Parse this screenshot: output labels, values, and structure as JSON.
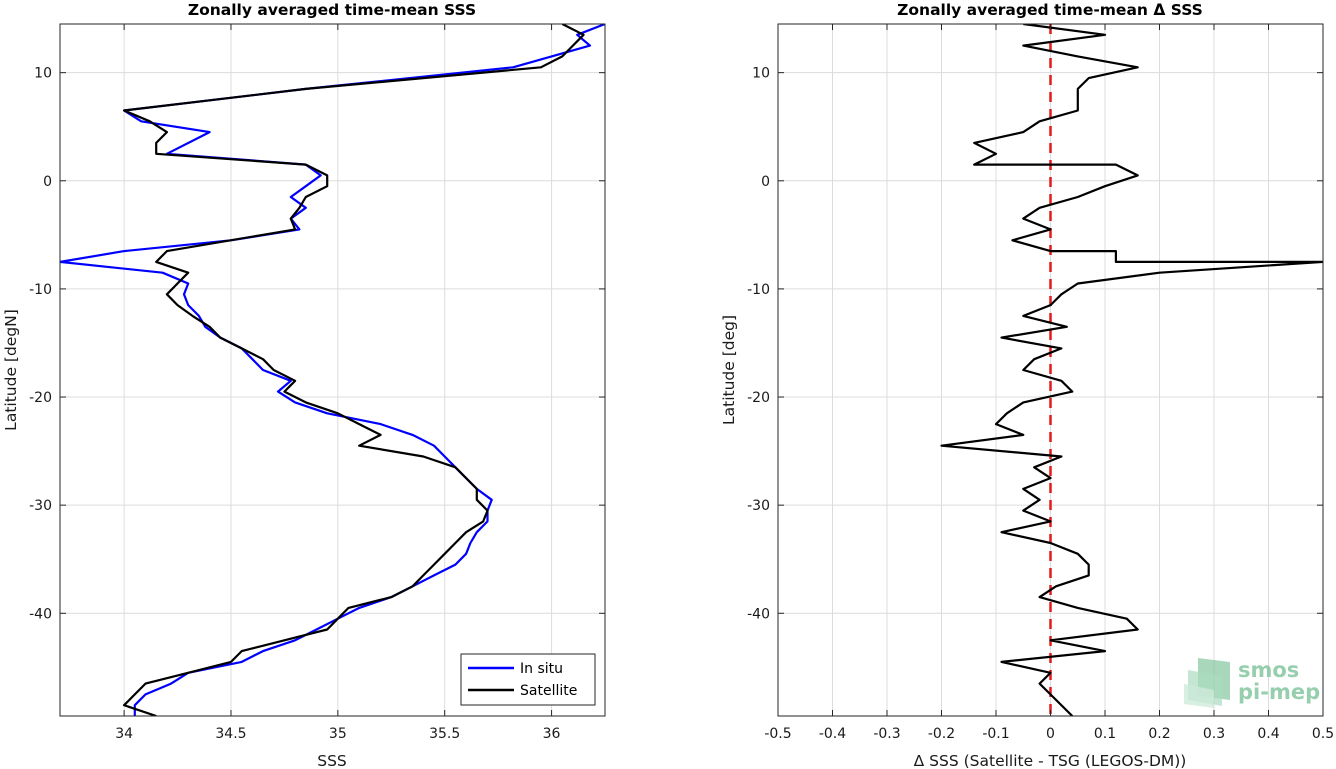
{
  "chart_data": [
    {
      "type": "line",
      "title": "Zonally averaged time-mean SSS",
      "xlabel": "SSS",
      "ylabel": "Latitude [degN]",
      "xlim": [
        33.7,
        36.25
      ],
      "ylim": [
        -49.5,
        14.5
      ],
      "xticks": [
        "34",
        "34.5",
        "35",
        "35.5",
        "36"
      ],
      "yticks": [
        "10",
        "0",
        "-10",
        "-20",
        "-30",
        "-40"
      ],
      "grid": true,
      "legend": {
        "position": "bottom-right",
        "entries": [
          "In situ",
          "Satellite"
        ]
      },
      "series": [
        {
          "name": "In situ",
          "color": "#0000ff",
          "points": [
            [
              36.25,
              14.5
            ],
            [
              36.12,
              13.5
            ],
            [
              36.18,
              12.5
            ],
            [
              35.82,
              10.5
            ],
            [
              34.85,
              8.5
            ],
            [
              34.0,
              6.5
            ],
            [
              34.08,
              5.5
            ],
            [
              34.4,
              4.5
            ],
            [
              34.2,
              2.5
            ],
            [
              34.85,
              1.5
            ],
            [
              34.92,
              0.5
            ],
            [
              34.85,
              -0.5
            ],
            [
              34.78,
              -1.5
            ],
            [
              34.85,
              -2.5
            ],
            [
              34.78,
              -3.5
            ],
            [
              34.82,
              -4.5
            ],
            [
              34.5,
              -5.5
            ],
            [
              34.0,
              -6.5
            ],
            [
              33.7,
              -7.5
            ],
            [
              34.18,
              -8.5
            ],
            [
              34.3,
              -9.5
            ],
            [
              34.28,
              -10.5
            ],
            [
              34.3,
              -11.5
            ],
            [
              34.35,
              -12.5
            ],
            [
              34.38,
              -13.5
            ],
            [
              34.45,
              -14.5
            ],
            [
              34.55,
              -15.5
            ],
            [
              34.6,
              -16.5
            ],
            [
              34.65,
              -17.5
            ],
            [
              34.78,
              -18.5
            ],
            [
              34.72,
              -19.5
            ],
            [
              34.8,
              -20.5
            ],
            [
              34.95,
              -21.5
            ],
            [
              35.2,
              -22.5
            ],
            [
              35.35,
              -23.5
            ],
            [
              35.45,
              -24.5
            ],
            [
              35.5,
              -25.5
            ],
            [
              35.55,
              -26.5
            ],
            [
              35.6,
              -27.5
            ],
            [
              35.65,
              -28.5
            ],
            [
              35.72,
              -29.5
            ],
            [
              35.7,
              -30.5
            ],
            [
              35.7,
              -31.5
            ],
            [
              35.65,
              -32.5
            ],
            [
              35.62,
              -33.5
            ],
            [
              35.6,
              -34.5
            ],
            [
              35.55,
              -35.5
            ],
            [
              35.45,
              -36.5
            ],
            [
              35.35,
              -37.5
            ],
            [
              35.25,
              -38.5
            ],
            [
              35.1,
              -39.5
            ],
            [
              35.0,
              -40.5
            ],
            [
              34.9,
              -41.5
            ],
            [
              34.8,
              -42.5
            ],
            [
              34.65,
              -43.5
            ],
            [
              34.55,
              -44.5
            ],
            [
              34.3,
              -45.5
            ],
            [
              34.22,
              -46.5
            ],
            [
              34.1,
              -47.5
            ],
            [
              34.05,
              -48.5
            ],
            [
              34.05,
              -49.5
            ]
          ]
        },
        {
          "name": "Satellite",
          "color": "#000000",
          "points": [
            [
              36.05,
              14.5
            ],
            [
              36.15,
              13.5
            ],
            [
              36.1,
              12.5
            ],
            [
              36.05,
              11.5
            ],
            [
              35.95,
              10.5
            ],
            [
              34.85,
              8.5
            ],
            [
              34.0,
              6.5
            ],
            [
              34.12,
              5.5
            ],
            [
              34.2,
              4.5
            ],
            [
              34.15,
              3.5
            ],
            [
              34.15,
              2.5
            ],
            [
              34.85,
              1.5
            ],
            [
              34.95,
              0.5
            ],
            [
              34.95,
              -0.5
            ],
            [
              34.85,
              -1.5
            ],
            [
              34.82,
              -2.5
            ],
            [
              34.78,
              -3.5
            ],
            [
              34.8,
              -4.5
            ],
            [
              34.2,
              -6.5
            ],
            [
              34.15,
              -7.5
            ],
            [
              34.3,
              -8.5
            ],
            [
              34.25,
              -9.5
            ],
            [
              34.2,
              -10.5
            ],
            [
              34.25,
              -11.5
            ],
            [
              34.32,
              -12.5
            ],
            [
              34.4,
              -13.5
            ],
            [
              34.45,
              -14.5
            ],
            [
              34.55,
              -15.5
            ],
            [
              34.65,
              -16.5
            ],
            [
              34.7,
              -17.5
            ],
            [
              34.8,
              -18.5
            ],
            [
              34.75,
              -19.5
            ],
            [
              34.85,
              -20.5
            ],
            [
              35.0,
              -21.5
            ],
            [
              35.1,
              -22.5
            ],
            [
              35.2,
              -23.5
            ],
            [
              35.1,
              -24.5
            ],
            [
              35.4,
              -25.5
            ],
            [
              35.55,
              -26.5
            ],
            [
              35.6,
              -27.5
            ],
            [
              35.65,
              -28.5
            ],
            [
              35.65,
              -29.5
            ],
            [
              35.7,
              -30.5
            ],
            [
              35.68,
              -31.5
            ],
            [
              35.6,
              -32.5
            ],
            [
              35.55,
              -33.5
            ],
            [
              35.5,
              -34.5
            ],
            [
              35.45,
              -35.5
            ],
            [
              35.4,
              -36.5
            ],
            [
              35.35,
              -37.5
            ],
            [
              35.25,
              -38.5
            ],
            [
              35.05,
              -39.5
            ],
            [
              35.0,
              -40.5
            ],
            [
              34.95,
              -41.5
            ],
            [
              34.75,
              -42.5
            ],
            [
              34.55,
              -43.5
            ],
            [
              34.5,
              -44.5
            ],
            [
              34.3,
              -45.5
            ],
            [
              34.1,
              -46.5
            ],
            [
              34.05,
              -47.5
            ],
            [
              34.0,
              -48.5
            ],
            [
              34.15,
              -49.5
            ]
          ]
        }
      ]
    },
    {
      "type": "line",
      "title": "Zonally averaged time-mean Δ SSS",
      "xlabel": "Δ SSS (Satellite - TSG (LEGOS-DM))",
      "ylabel": "Latitude [deg]",
      "xlim": [
        -0.5,
        0.5
      ],
      "ylim": [
        -49.5,
        14.5
      ],
      "xticks": [
        "-0.5",
        "-0.4",
        "-0.3",
        "-0.2",
        "-0.1",
        "0",
        "0.1",
        "0.2",
        "0.3",
        "0.4",
        "0.5"
      ],
      "yticks": [
        "10",
        "0",
        "-10",
        "-20",
        "-30",
        "-40"
      ],
      "grid": true,
      "reference_line": {
        "x": 0,
        "color": "#e41a1c",
        "style": "dashed"
      },
      "series": [
        {
          "name": "",
          "color": "#000000",
          "points": [
            [
              -0.05,
              14.5
            ],
            [
              0.1,
              13.5
            ],
            [
              -0.05,
              12.5
            ],
            [
              0.05,
              11.5
            ],
            [
              0.16,
              10.5
            ],
            [
              0.07,
              9.5
            ],
            [
              0.05,
              8.5
            ],
            [
              0.05,
              7.5
            ],
            [
              0.05,
              6.5
            ],
            [
              -0.02,
              5.5
            ],
            [
              -0.05,
              4.5
            ],
            [
              -0.14,
              3.5
            ],
            [
              -0.1,
              2.5
            ],
            [
              -0.14,
              1.5
            ],
            [
              0.12,
              1.5
            ],
            [
              0.16,
              0.5
            ],
            [
              0.1,
              -0.5
            ],
            [
              0.05,
              -1.5
            ],
            [
              -0.02,
              -2.5
            ],
            [
              -0.05,
              -3.5
            ],
            [
              0.0,
              -4.5
            ],
            [
              -0.07,
              -5.5
            ],
            [
              0.0,
              -6.5
            ],
            [
              0.12,
              -6.5
            ],
            [
              0.12,
              -7.5
            ],
            [
              0.5,
              -7.5
            ],
            [
              0.2,
              -8.5
            ],
            [
              0.05,
              -9.5
            ],
            [
              0.02,
              -10.5
            ],
            [
              0.0,
              -11.5
            ],
            [
              -0.05,
              -12.5
            ],
            [
              0.03,
              -13.5
            ],
            [
              -0.09,
              -14.5
            ],
            [
              0.02,
              -15.5
            ],
            [
              -0.03,
              -16.5
            ],
            [
              -0.05,
              -17.5
            ],
            [
              0.02,
              -18.5
            ],
            [
              0.04,
              -19.5
            ],
            [
              -0.05,
              -20.5
            ],
            [
              -0.08,
              -21.5
            ],
            [
              -0.1,
              -22.5
            ],
            [
              -0.05,
              -23.5
            ],
            [
              -0.2,
              -24.5
            ],
            [
              0.02,
              -25.5
            ],
            [
              -0.03,
              -26.5
            ],
            [
              0.0,
              -27.5
            ],
            [
              -0.05,
              -28.5
            ],
            [
              -0.02,
              -29.5
            ],
            [
              -0.05,
              -30.5
            ],
            [
              0.0,
              -31.5
            ],
            [
              -0.09,
              -32.5
            ],
            [
              0.0,
              -33.5
            ],
            [
              0.05,
              -34.5
            ],
            [
              0.07,
              -35.5
            ],
            [
              0.07,
              -36.5
            ],
            [
              0.01,
              -37.5
            ],
            [
              -0.02,
              -38.5
            ],
            [
              0.05,
              -39.5
            ],
            [
              0.14,
              -40.5
            ],
            [
              0.16,
              -41.5
            ],
            [
              0.0,
              -42.5
            ],
            [
              0.1,
              -43.5
            ],
            [
              -0.09,
              -44.5
            ],
            [
              0.0,
              -45.5
            ],
            [
              -0.02,
              -46.5
            ],
            [
              0.04,
              -49.5
            ]
          ]
        }
      ]
    }
  ],
  "watermark": {
    "line1": "smos",
    "line2": "pi-mep",
    "color": "#8cc9a6"
  }
}
